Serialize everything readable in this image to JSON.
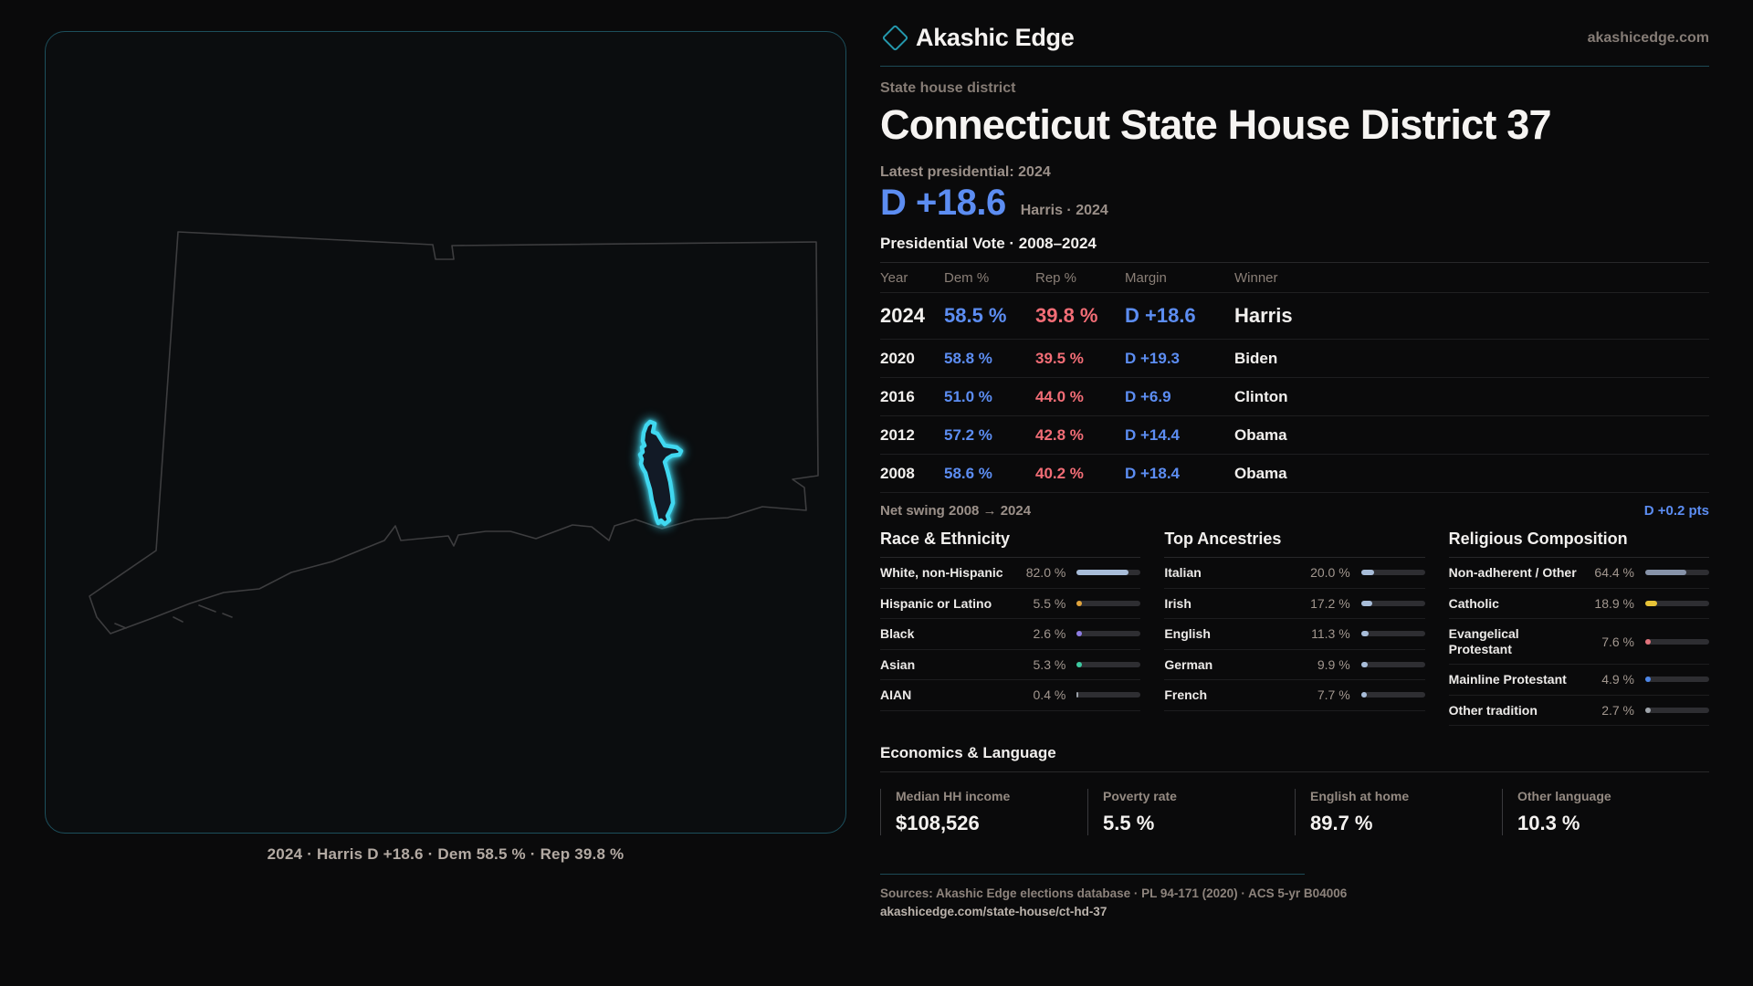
{
  "brand": {
    "name": "Akashic Edge",
    "site": "akashicedge.com"
  },
  "kicker": "State house district",
  "title": "Connecticut State House District 37",
  "latest": {
    "label": "Latest presidential: 2024",
    "value": "D +18.6",
    "note": "Harris · 2024"
  },
  "pres_table": {
    "title": "Presidential Vote · 2008–2024",
    "columns": [
      "Year",
      "Dem %",
      "Rep %",
      "Margin",
      "Winner"
    ],
    "rows": [
      {
        "year": "2024",
        "dem": "58.5 %",
        "rep": "39.8 %",
        "margin": "D +18.6",
        "winner": "Harris",
        "highlight": true
      },
      {
        "year": "2020",
        "dem": "58.8 %",
        "rep": "39.5 %",
        "margin": "D +19.3",
        "winner": "Biden",
        "highlight": false
      },
      {
        "year": "2016",
        "dem": "51.0 %",
        "rep": "44.0 %",
        "margin": "D +6.9",
        "winner": "Clinton",
        "highlight": false
      },
      {
        "year": "2012",
        "dem": "57.2 %",
        "rep": "42.8 %",
        "margin": "D +14.4",
        "winner": "Obama",
        "highlight": false
      },
      {
        "year": "2008",
        "dem": "58.6 %",
        "rep": "40.2 %",
        "margin": "D +18.4",
        "winner": "Obama",
        "highlight": false
      }
    ]
  },
  "net_swing": {
    "label": "Net swing 2008 → 2024",
    "value": "D +0.2 pts"
  },
  "demographics": [
    {
      "title": "Race & Ethnicity",
      "rows": [
        {
          "label": "White, non-Hispanic",
          "value": "82.0 %",
          "pct": 82.0,
          "color": "#a8bdd9"
        },
        {
          "label": "Hispanic or Latino",
          "value": "5.5 %",
          "pct": 5.5,
          "color": "#e0a33c"
        },
        {
          "label": "Black",
          "value": "2.6 %",
          "pct": 2.6,
          "color": "#8d7ce2"
        },
        {
          "label": "Asian",
          "value": "5.3 %",
          "pct": 5.3,
          "color": "#3cc9a0"
        },
        {
          "label": "AIAN",
          "value": "0.4 %",
          "pct": 0.4,
          "color": "#9aa0a8"
        }
      ]
    },
    {
      "title": "Top Ancestries",
      "rows": [
        {
          "label": "Italian",
          "value": "20.0 %",
          "pct": 20.0,
          "color": "#a8bdd9"
        },
        {
          "label": "Irish",
          "value": "17.2 %",
          "pct": 17.2,
          "color": "#a8bdd9"
        },
        {
          "label": "English",
          "value": "11.3 %",
          "pct": 11.3,
          "color": "#a8bdd9"
        },
        {
          "label": "German",
          "value": "9.9 %",
          "pct": 9.9,
          "color": "#a8bdd9"
        },
        {
          "label": "French",
          "value": "7.7 %",
          "pct": 7.7,
          "color": "#a8bdd9"
        }
      ]
    },
    {
      "title": "Religious Composition",
      "rows": [
        {
          "label": "Non-adherent / Other",
          "value": "64.4 %",
          "pct": 64.4,
          "color": "#8793a9"
        },
        {
          "label": "Catholic",
          "value": "18.9 %",
          "pct": 18.9,
          "color": "#e7c337"
        },
        {
          "label": "Evangelical Protestant",
          "value": "7.6 %",
          "pct": 7.6,
          "color": "#e2737c"
        },
        {
          "label": "Mainline Protestant",
          "value": "4.9 %",
          "pct": 4.9,
          "color": "#4d86e8"
        },
        {
          "label": "Other tradition",
          "value": "2.7 %",
          "pct": 2.7,
          "color": "#9fa4ab"
        }
      ]
    }
  ],
  "economics": {
    "title": "Economics & Language",
    "stats": [
      {
        "label": "Median HH income",
        "value": "$108,526"
      },
      {
        "label": "Poverty rate",
        "value": "5.5 %"
      },
      {
        "label": "English at home",
        "value": "89.7 %"
      },
      {
        "label": "Other language",
        "value": "10.3 %"
      }
    ]
  },
  "map": {
    "caption": "2024 · Harris D +18.6 · Dem 58.5 % · Rep 39.8 %"
  },
  "footer": {
    "sources": "Sources: Akashic Edge elections database · PL 94-171 (2020) · ACS 5-yr B04006",
    "permalink": "akashicedge.com/state-house/ct-hd-37"
  },
  "colors": {
    "dem_blue": "#5c8df2",
    "rep_red": "#f26d76",
    "district_cyan": "#40d8f0",
    "card_border_teal": "#1c4f5c",
    "bar_track": "#2e2e32"
  }
}
